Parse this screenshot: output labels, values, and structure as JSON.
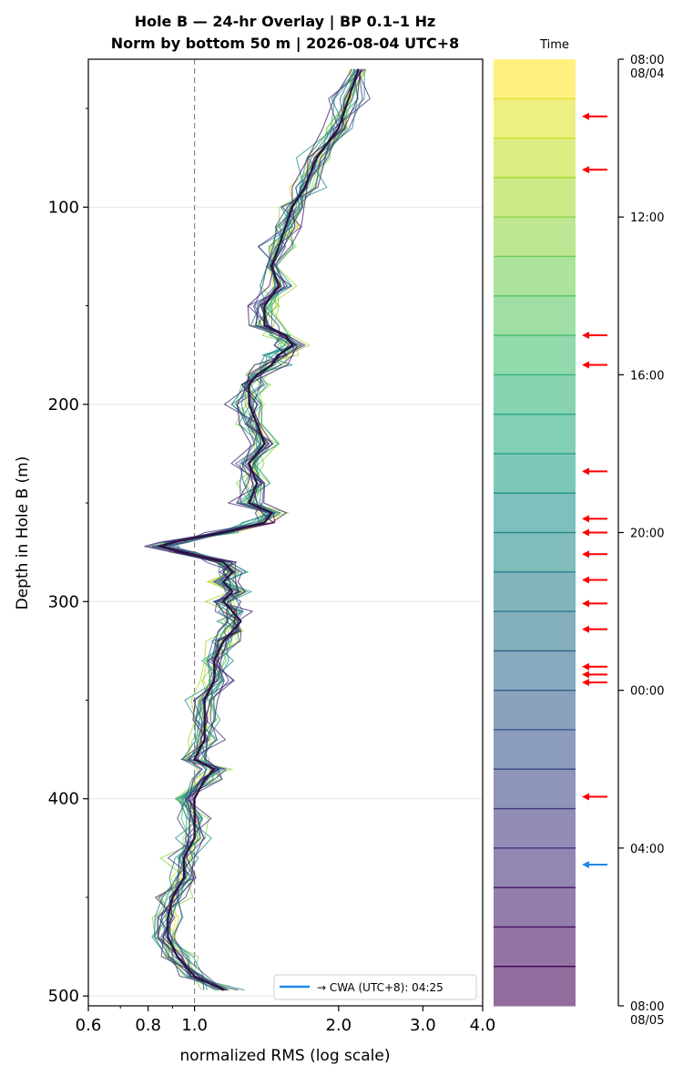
{
  "chart_data": {
    "type": "line",
    "title": "Hole B — 24-hr Overlay  |  BP 0.1–1 Hz",
    "subtitle": "Norm by bottom 50 m  |  2026-08-04 UTC+8",
    "xlabel": "normalized RMS  (log scale)",
    "ylabel": "Depth in Hole B (m)",
    "x_scale": "log",
    "xlim": [
      0.6,
      4.0
    ],
    "ylim": [
      505,
      25
    ],
    "x_ticks": [
      "0.6",
      "0.8",
      "1.0",
      "2.0",
      "3.0",
      "4.0"
    ],
    "x_tick_values": [
      0.6,
      0.8,
      1.0,
      2.0,
      3.0,
      4.0
    ],
    "y_ticks": [
      "100",
      "200",
      "300",
      "400",
      "500"
    ],
    "y_tick_values": [
      100,
      200,
      300,
      400,
      500
    ],
    "reference_line": {
      "x": 1.0,
      "style": "dashed",
      "color": "#888888"
    },
    "grid": "horizontal",
    "legend": {
      "placement": "bottom-right",
      "label": "→ CWA (UTC+8): 04:25",
      "color": "#1e88e5"
    },
    "median_profile": {
      "depth": [
        30,
        45,
        60,
        75,
        90,
        100,
        110,
        120,
        130,
        140,
        150,
        160,
        165,
        170,
        175,
        180,
        185,
        190,
        200,
        210,
        220,
        230,
        240,
        250,
        255,
        260,
        265,
        270,
        272,
        275,
        280,
        285,
        290,
        295,
        300,
        305,
        310,
        315,
        320,
        330,
        340,
        350,
        360,
        370,
        380,
        385,
        390,
        400,
        410,
        420,
        430,
        440,
        450,
        460,
        470,
        480,
        490,
        497
      ],
      "rms": [
        2.2,
        2.1,
        2.0,
        1.8,
        1.7,
        1.6,
        1.55,
        1.5,
        1.45,
        1.5,
        1.4,
        1.4,
        1.55,
        1.6,
        1.5,
        1.45,
        1.35,
        1.3,
        1.3,
        1.35,
        1.4,
        1.3,
        1.35,
        1.3,
        1.45,
        1.4,
        1.15,
        0.9,
        0.85,
        0.95,
        1.15,
        1.2,
        1.15,
        1.2,
        1.15,
        1.2,
        1.25,
        1.2,
        1.15,
        1.1,
        1.1,
        1.05,
        1.05,
        1.05,
        1.0,
        1.1,
        1.05,
        1.0,
        1.0,
        1.0,
        0.95,
        0.95,
        0.9,
        0.88,
        0.88,
        0.92,
        1.0,
        1.15
      ]
    },
    "series_count": 24,
    "series_spread": [
      0.03,
      0.04,
      0.05,
      0.06,
      0.07,
      0.05,
      0.04,
      0.03
    ],
    "colorbar": {
      "label": "Time",
      "n_bands": 24,
      "colormap": "viridis",
      "ticks": [
        {
          "label": "08:00",
          "label2": "08/04",
          "hour": 0
        },
        {
          "label": "12:00",
          "hour": 4
        },
        {
          "label": "16:00",
          "hour": 8
        },
        {
          "label": "20:00",
          "hour": 12
        },
        {
          "label": "00:00",
          "hour": 16
        },
        {
          "label": "04:00",
          "hour": 20
        },
        {
          "label": "08:00",
          "label2": "08/05",
          "hour": 24
        }
      ],
      "event_markers_hours": [
        1.45,
        2.8,
        7.0,
        7.75,
        10.45,
        11.65,
        12.0,
        12.55,
        13.2,
        13.8,
        14.45,
        15.4,
        15.6,
        15.8,
        18.7
      ],
      "event_marker_color": "#ff0000",
      "cwa_marker_hours": 20.42,
      "cwa_marker_color": "#1e88e5"
    }
  }
}
